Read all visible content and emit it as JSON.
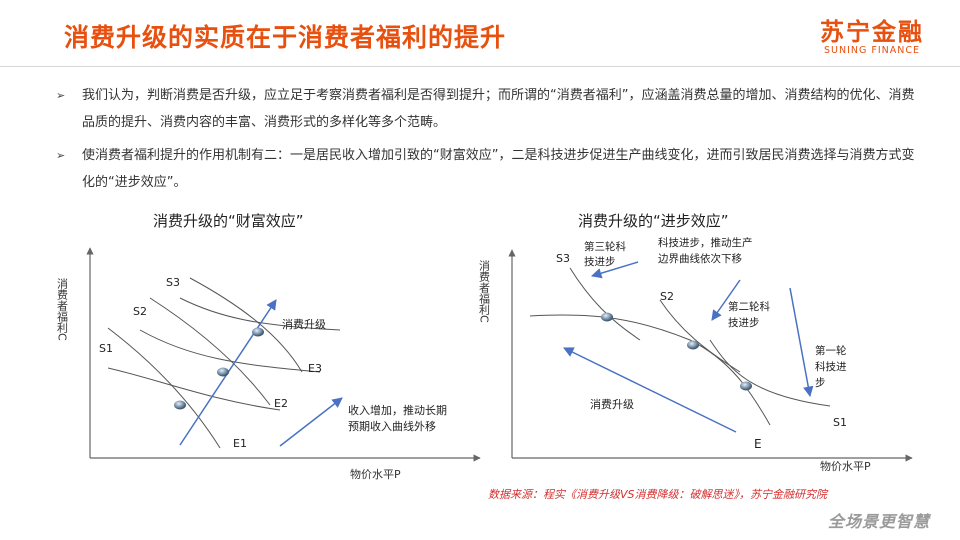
{
  "header": {
    "title": "消费升级的实质在于消费者福利的提升",
    "logo_cn": "苏宁金融",
    "logo_en": "SUNING FINANCE"
  },
  "bullets": [
    {
      "icon": "arrow-bullet-icon",
      "text": "我们认为，判断消费是否升级，应立足于考察消费者福利是否得到提升；而所谓的“消费者福利”，应涵盖消费总量的增加、消费结构的优化、消费品质的提升、消费内容的丰富、消费形式的多样化等多个范畴。"
    },
    {
      "icon": "arrow-bullet-icon",
      "text": "使消费者福利提升的作用机制有二：一是居民收入增加引致的“财富效应”，二是科技进步促进生产曲线变化，进而引致居民消费选择与消费方式变化的“进步效应”。"
    }
  ],
  "left_chart": {
    "title": "消费升级的“财富效应”",
    "y_label": "消费者福利C",
    "x_label": "物价水平P",
    "supply_labels": [
      "S1",
      "S2",
      "S3"
    ],
    "demand_labels": [
      "E1",
      "E2",
      "E3"
    ],
    "arrow_label": "消费升级",
    "annotation_line1": "收入增加，推动长期",
    "annotation_line2": "预期收入曲线外移"
  },
  "right_chart": {
    "title": "消费升级的“进步效应”",
    "y_label": "消费者福利C",
    "x_label": "物价水平P",
    "supply_labels": [
      "S3",
      "S2",
      "S1"
    ],
    "demand_label": "E",
    "arrow_label": "消费升级",
    "note1_line1": "第三轮科",
    "note1_line2": "技进步",
    "note2_line1": "科技进步，推动生产",
    "note2_line2": "边界曲线依次下移",
    "note3_line1": "第二轮科",
    "note3_line2": "技进步",
    "note4_line1": "第一轮",
    "note4_line2": "科技进",
    "note4_line3": "步"
  },
  "footer": {
    "source": "数据来源：程实《消费升级VS消费降级：破解思迷》，苏宁金融研究院",
    "watermark": "全场景更智慧"
  },
  "colors": {
    "accent": "#e8500f",
    "arrow": "#4a72c4",
    "curve": "#555555",
    "source": "#d32f2f"
  }
}
